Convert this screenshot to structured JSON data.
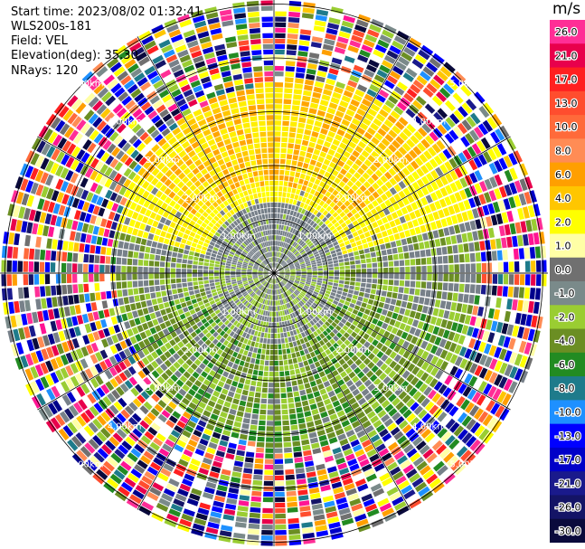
{
  "header": {
    "start_time": "Start time: 2023/08/02 01:32:41",
    "instrument": "WLS200s-181",
    "field": "Field: VEL",
    "elevation": "Elevation(deg): 35.30",
    "nrays": "NRays: 120"
  },
  "chart_data": {
    "type": "heatmap",
    "projection": "polar",
    "field": "VEL",
    "nrays": 120,
    "ranges_km": [
      1.0,
      2.0,
      3.0,
      4.0,
      5.0
    ],
    "range_labels": [
      "1.00km",
      "2.00km",
      "3.00km",
      "4.00km",
      "5.00km"
    ],
    "colorbar": {
      "unit": "m/s",
      "ticks": [
        "26.0",
        "21.0",
        "17.0",
        "13.0",
        "10.0",
        "8.0",
        "6.0",
        "4.0",
        "2.0",
        "1.0",
        "0.0",
        "-1.0",
        "-2.0",
        "-4.0",
        "-6.0",
        "-8.0",
        "-10.0",
        "-13.0",
        "-17.0",
        "-21.0",
        "-26.0",
        "-30.0"
      ],
      "colors": [
        "#ff2e96",
        "#e8004c",
        "#ff2020",
        "#ff4d2e",
        "#ff6a3a",
        "#ff8c55",
        "#ff9f00",
        "#ffc600",
        "#ffff00",
        "#ffffa6",
        "#707070",
        "#7a8a8a",
        "#9acd32",
        "#6b8e23",
        "#228b22",
        "#1e7b8b",
        "#1e90ff",
        "#0000ff",
        "#0000c8",
        "#1a1a8c",
        "#141466",
        "#0a0a3c"
      ]
    },
    "pattern": {
      "near_field": "mixed grey and green around center",
      "north_ring": "yellow with orange patches",
      "south_ring": "olive and green",
      "outer_ring": "noisy multicolor"
    }
  }
}
